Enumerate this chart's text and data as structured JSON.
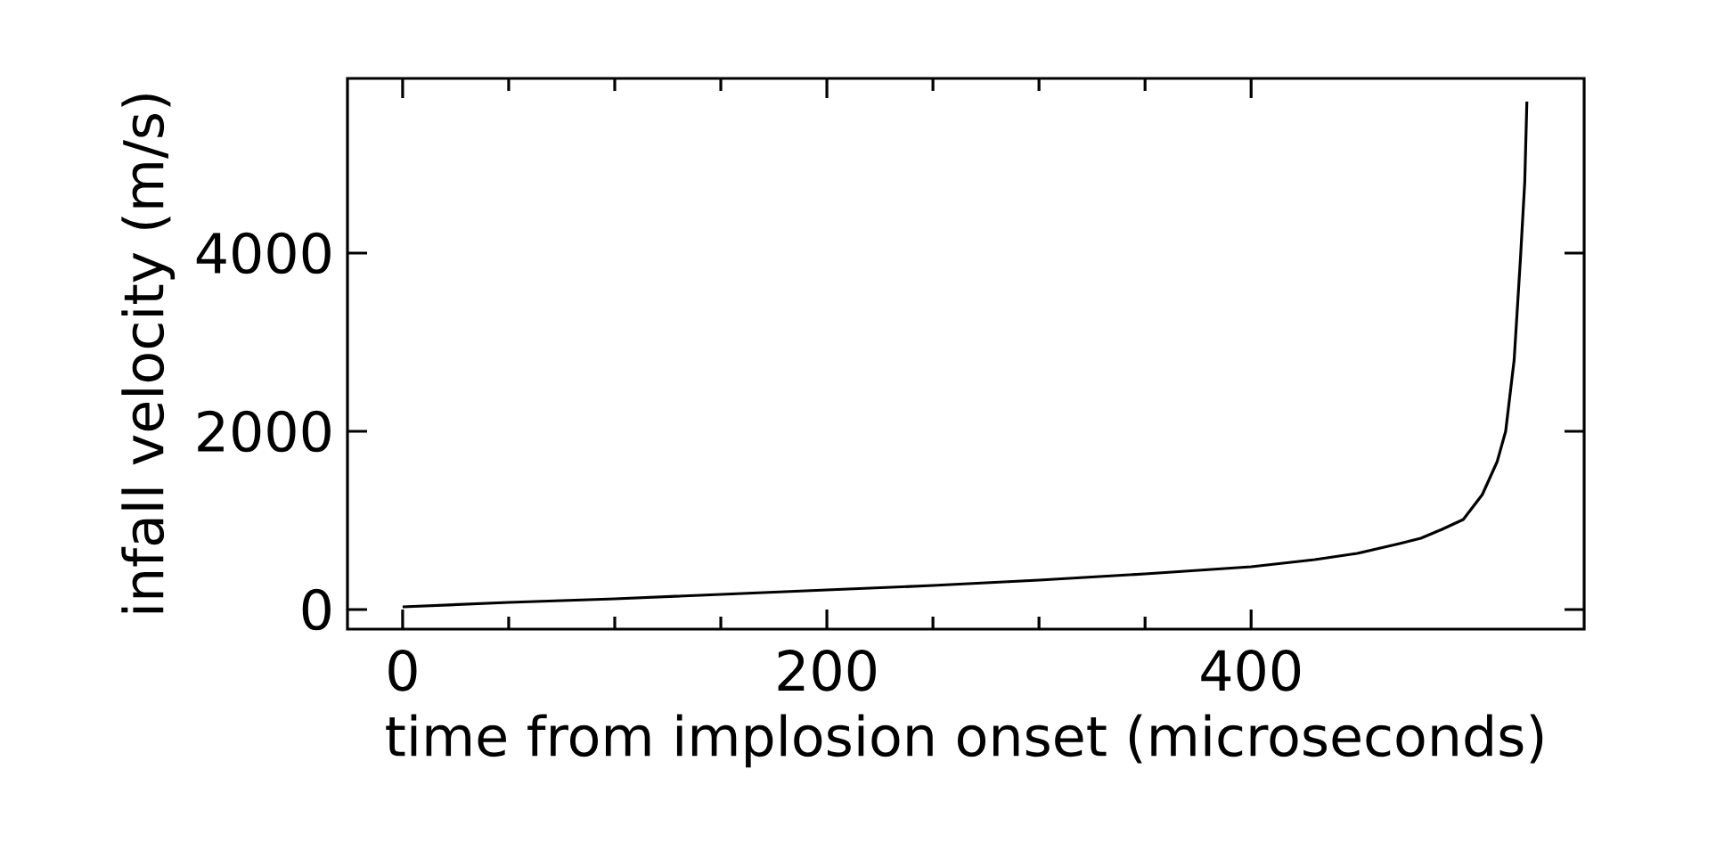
{
  "chart_data": {
    "type": "line",
    "xlabel": "time from implosion onset (microseconds)",
    "ylabel": "infall velocity (m/s)",
    "x": [
      0,
      50,
      100,
      150,
      200,
      250,
      300,
      350,
      400,
      430,
      450,
      470,
      480,
      490,
      500,
      509,
      516,
      520,
      524,
      527,
      529,
      530
    ],
    "series": [
      {
        "color": "#000000",
        "values": [
          30,
          80,
          120,
          170,
          220,
          270,
          330,
          400,
          480,
          560,
          630,
          740,
          800,
          900,
          1010,
          1290,
          1660,
          2000,
          2800,
          3950,
          4800,
          5700
        ]
      }
    ],
    "xlim": [
      -26,
      557
    ],
    "ylim": [
      -220,
      5960
    ],
    "xticks": [
      0,
      200,
      400
    ],
    "yticks": [
      0,
      2000,
      4000
    ],
    "grid": false,
    "marker": "none",
    "line_style": "solid"
  }
}
